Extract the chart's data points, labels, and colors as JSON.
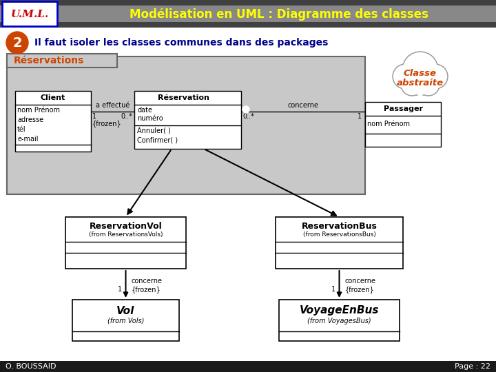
{
  "title_uml": "U.M.L.",
  "title_main": "Modélisation en UML : Diagramme des classes",
  "subtitle": "Il faut isoler les classes communes dans des packages",
  "page_num": "Page : 22",
  "author": "O. BOUSSAID",
  "header_bg_dark": "#404040",
  "header_bg_mid": "#888888",
  "header_fg": "#ffff00",
  "uml_box_color": "#0000cc",
  "uml_text_color": "#cc0000",
  "subtitle_color": "#00008b",
  "reservations_color": "#cc4400",
  "classe_abstraite_color": "#cc4400",
  "number_circle_color": "#cc4400",
  "footer_bg": "#1a1a1a",
  "footer_fg": "#ffffff",
  "pkg_bg": "#c8c8c8",
  "pkg_border": "#666666"
}
